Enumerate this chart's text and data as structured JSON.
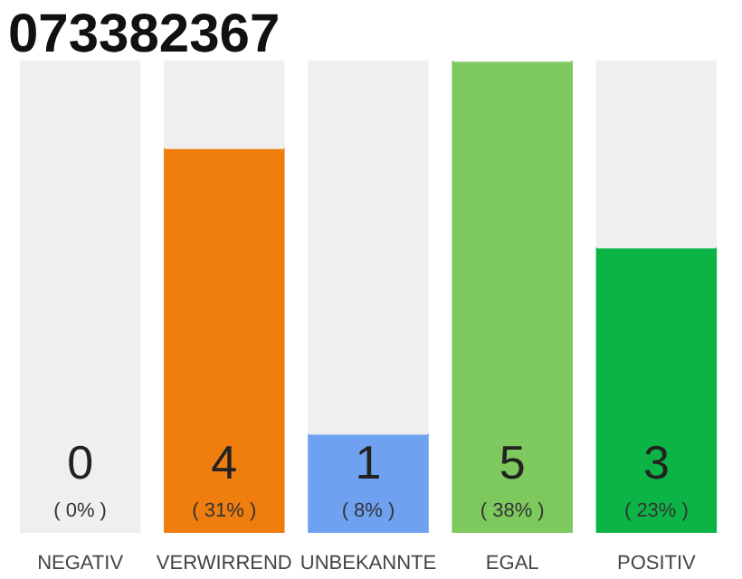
{
  "chart_data": {
    "type": "bar",
    "title": "073382367",
    "stacked": true,
    "categories": [
      "NEGATIV",
      "VERWIRREND",
      "UNBEKANNTE",
      "EGAL",
      "POSITIV"
    ],
    "series": [
      {
        "colors": [
          "#555555",
          "#f07e0f",
          "#6ea2f0",
          "#7dc95e",
          "#0cb446"
        ],
        "values": [
          0,
          31,
          8,
          38,
          23
        ],
        "value_labels": [
          "( 0% )",
          "( 31% )",
          "( 8% )",
          "( 38% )",
          "( 23% )"
        ]
      },
      {
        "color": "#efefef",
        "values": [
          38,
          7,
          30,
          0,
          15
        ]
      }
    ],
    "tick_labels": "x",
    "grid": false,
    "annotations": [
      "0",
      "4",
      "1",
      "5",
      "3"
    ]
  }
}
